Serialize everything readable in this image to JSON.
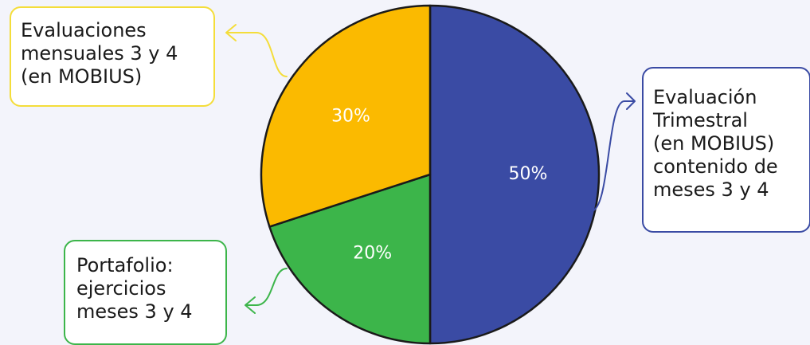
{
  "chart_data": {
    "type": "pie",
    "slices": [
      {
        "label": "Evaluación Trimestral (en MOBIUS) contenido de meses 3 y 4",
        "value": 50,
        "value_label": "50%",
        "color": "#3a4ba4"
      },
      {
        "label": "Portafolio: ejercicios meses 3 y 4",
        "value": 20,
        "value_label": "20%",
        "color": "#3cb54a"
      },
      {
        "label": "Evaluaciones mensuales 3 y 4 (en MOBIUS)",
        "value": 30,
        "value_label": "30%",
        "color": "#fbba00"
      }
    ],
    "start": "12 o'clock",
    "direction": "clockwise"
  },
  "callouts": {
    "mensuales": {
      "text": "Evaluaciones\nmensuales 3 y 4\n(en MOBIUS)",
      "border_color": "#f4dd3a"
    },
    "trimestral": {
      "text": "Evaluación\nTrimestral\n(en MOBIUS)\ncontenido de\nmeses 3 y 4",
      "border_color": "#3a4ba4"
    },
    "portafolio": {
      "text": "Portafolio:\nejercicios\nmeses 3 y 4",
      "border_color": "#3cb54a"
    }
  }
}
